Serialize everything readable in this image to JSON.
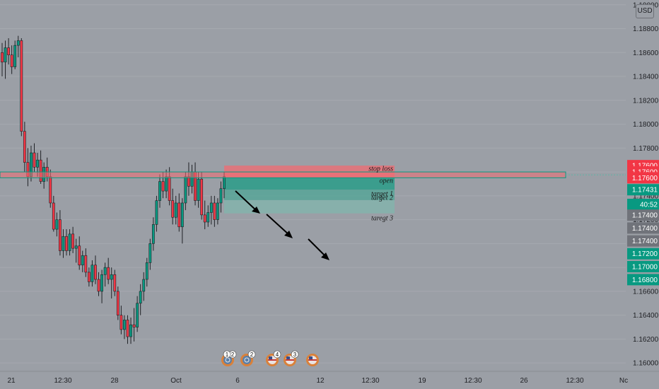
{
  "currency_button": {
    "label": "USD"
  },
  "price_axis": {
    "ticks": [
      "1.19000",
      "1.18800",
      "1.18600",
      "1.18400",
      "1.18200",
      "1.18000",
      "1.17800",
      "1.17600",
      "1.17400",
      "1.17200",
      "1.17000",
      "1.16800",
      "1.16600",
      "1.16400",
      "1.16200",
      "1.16000"
    ],
    "tick_values": [
      1.19,
      1.188,
      1.186,
      1.184,
      1.182,
      1.18,
      1.178,
      1.176,
      1.174,
      1.172,
      1.17,
      1.168,
      1.166,
      1.164,
      1.162,
      1.16
    ],
    "badges": [
      {
        "text": "1.17600",
        "value": 1.17653,
        "color": "#f23645"
      },
      {
        "text": "1.17600",
        "value": 1.176,
        "color": "#f23645"
      },
      {
        "text": "1.17600",
        "value": 1.17551,
        "color": "#f23645"
      },
      {
        "text": "1.17431",
        "value": 1.17451,
        "color": "#089981"
      },
      {
        "text": "40:52",
        "value": 1.17328,
        "color": "#089981"
      },
      {
        "text": "1.17400",
        "value": 1.17238,
        "color": "#70737a"
      },
      {
        "text": "1.17400",
        "value": 1.1713,
        "color": "#70737a"
      },
      {
        "text": "1.17400",
        "value": 1.17022,
        "color": "#70737a"
      },
      {
        "text": "1.17200",
        "value": 1.16915,
        "color": "#089981"
      },
      {
        "text": "1.17000",
        "value": 1.16807,
        "color": "#089981"
      },
      {
        "text": "1.16800",
        "value": 1.16698,
        "color": "#089981"
      }
    ]
  },
  "time_axis": {
    "labels": [
      "21",
      "12:30",
      "28",
      "Oct",
      "6",
      "12",
      "12:30",
      "19",
      "12:30",
      "26",
      "12:30",
      "Nc"
    ]
  },
  "trade_zone": {
    "labels": [
      "stop loss",
      "open",
      "target 1",
      "target 2",
      "taregt 3"
    ],
    "prices": {
      "stop_top": 1.17653,
      "open": 1.17551,
      "target1": 1.17451,
      "target2": 1.17364,
      "target3": 1.17253
    },
    "support_band": {
      "top": 1.176,
      "bottom": 1.17551
    }
  },
  "events": [
    {
      "label": "2",
      "extra": "1",
      "flag": "world"
    },
    {
      "label": "2",
      "flag": "world"
    },
    {
      "label": "4",
      "flag": "us"
    },
    {
      "label": "3",
      "flag": "us"
    },
    {
      "label": "",
      "flag": "us"
    }
  ],
  "chart_data": {
    "type": "candlestick",
    "title": "",
    "ylim": [
      1.1593,
      1.1904
    ],
    "up_color": "#089981",
    "down_color": "#f23645",
    "candles": [
      [
        1.186,
        1.1868,
        1.184,
        1.1852
      ],
      [
        1.1852,
        1.187,
        1.1838,
        1.1864
      ],
      [
        1.1864,
        1.1872,
        1.185,
        1.1858
      ],
      [
        1.1858,
        1.1866,
        1.1842,
        1.1848
      ],
      [
        1.1848,
        1.187,
        1.1846,
        1.1866
      ],
      [
        1.1866,
        1.1874,
        1.1856,
        1.187
      ],
      [
        1.187,
        1.1872,
        1.179,
        1.1794
      ],
      [
        1.1794,
        1.1802,
        1.176,
        1.1768
      ],
      [
        1.1768,
        1.178,
        1.1748,
        1.1756
      ],
      [
        1.1756,
        1.1782,
        1.1752,
        1.1776
      ],
      [
        1.1776,
        1.1784,
        1.176,
        1.1764
      ],
      [
        1.1764,
        1.1776,
        1.1756,
        1.177
      ],
      [
        1.177,
        1.1778,
        1.175,
        1.1752
      ],
      [
        1.1752,
        1.1768,
        1.1746,
        1.1764
      ],
      [
        1.1764,
        1.1772,
        1.1752,
        1.1756
      ],
      [
        1.1756,
        1.1762,
        1.173,
        1.1734
      ],
      [
        1.1734,
        1.174,
        1.171,
        1.1712
      ],
      [
        1.1712,
        1.1726,
        1.1706,
        1.172
      ],
      [
        1.172,
        1.1728,
        1.169,
        1.1694
      ],
      [
        1.1694,
        1.1712,
        1.1688,
        1.1706
      ],
      [
        1.1706,
        1.1712,
        1.169,
        1.1694
      ],
      [
        1.1694,
        1.1712,
        1.169,
        1.1708
      ],
      [
        1.1708,
        1.1714,
        1.1692,
        1.1696
      ],
      [
        1.1696,
        1.1704,
        1.1684,
        1.1698
      ],
      [
        1.1698,
        1.1706,
        1.1678,
        1.1682
      ],
      [
        1.1682,
        1.1694,
        1.1676,
        1.169
      ],
      [
        1.169,
        1.1696,
        1.1672,
        1.1676
      ],
      [
        1.1676,
        1.168,
        1.1664,
        1.1668
      ],
      [
        1.1668,
        1.1686,
        1.1664,
        1.1682
      ],
      [
        1.1682,
        1.169,
        1.1666,
        1.167
      ],
      [
        1.167,
        1.1676,
        1.1656,
        1.166
      ],
      [
        1.166,
        1.1678,
        1.165,
        1.1674
      ],
      [
        1.1674,
        1.1684,
        1.1664,
        1.168
      ],
      [
        1.168,
        1.1688,
        1.1666,
        1.167
      ],
      [
        1.167,
        1.168,
        1.1654,
        1.1674
      ],
      [
        1.1674,
        1.1678,
        1.1656,
        1.166
      ],
      [
        1.166,
        1.1664,
        1.1636,
        1.164
      ],
      [
        1.164,
        1.1648,
        1.1624,
        1.1628
      ],
      [
        1.1628,
        1.164,
        1.162,
        1.1636
      ],
      [
        1.1636,
        1.164,
        1.1616,
        1.1622
      ],
      [
        1.1622,
        1.1638,
        1.1616,
        1.1632
      ],
      [
        1.1632,
        1.1646,
        1.1618,
        1.163
      ],
      [
        1.163,
        1.1656,
        1.1626,
        1.165
      ],
      [
        1.165,
        1.1666,
        1.164,
        1.166
      ],
      [
        1.166,
        1.1676,
        1.1652,
        1.167
      ],
      [
        1.167,
        1.1688,
        1.1664,
        1.1684
      ],
      [
        1.1684,
        1.1704,
        1.1678,
        1.17
      ],
      [
        1.17,
        1.1722,
        1.1694,
        1.1716
      ],
      [
        1.1716,
        1.174,
        1.171,
        1.1736
      ],
      [
        1.1736,
        1.1758,
        1.173,
        1.1752
      ],
      [
        1.1752,
        1.176,
        1.1738,
        1.1744
      ],
      [
        1.1744,
        1.1762,
        1.1738,
        1.1756
      ],
      [
        1.1756,
        1.1764,
        1.1732,
        1.1736
      ],
      [
        1.1736,
        1.1746,
        1.1716,
        1.1722
      ],
      [
        1.1722,
        1.174,
        1.1716,
        1.1734
      ],
      [
        1.1734,
        1.1742,
        1.171,
        1.1714
      ],
      [
        1.1714,
        1.1738,
        1.17,
        1.1734
      ],
      [
        1.1734,
        1.176,
        1.1728,
        1.1756
      ],
      [
        1.1756,
        1.1768,
        1.174,
        1.1748
      ],
      [
        1.1748,
        1.1766,
        1.1742,
        1.176
      ],
      [
        1.176,
        1.1768,
        1.1732,
        1.1736
      ],
      [
        1.1736,
        1.176,
        1.173,
        1.1754
      ],
      [
        1.1754,
        1.176,
        1.172,
        1.1724
      ],
      [
        1.1724,
        1.1736,
        1.1712,
        1.1718
      ],
      [
        1.1718,
        1.1732,
        1.1714,
        1.1726
      ],
      [
        1.1726,
        1.174,
        1.1716,
        1.1734
      ],
      [
        1.1734,
        1.174,
        1.1714,
        1.172
      ],
      [
        1.172,
        1.1738,
        1.1716,
        1.1734
      ],
      [
        1.1734,
        1.1752,
        1.1726,
        1.1746
      ],
      [
        1.1746,
        1.176,
        1.1738,
        1.1756
      ]
    ]
  }
}
